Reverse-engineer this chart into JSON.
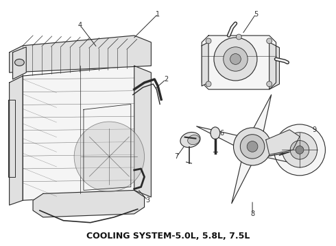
{
  "title": "COOLING SYSTEM-5.0L, 5.8L, 7.5L",
  "title_fontsize": 9,
  "title_fontweight": "bold",
  "background_color": "#ffffff",
  "fig_width": 4.9,
  "fig_height": 3.6,
  "dpi": 100,
  "line_color": "#2a2a2a",
  "fill_light": "#f5f5f5",
  "fill_mid": "#e0e0e0",
  "fill_dark": "#c8c8c8"
}
